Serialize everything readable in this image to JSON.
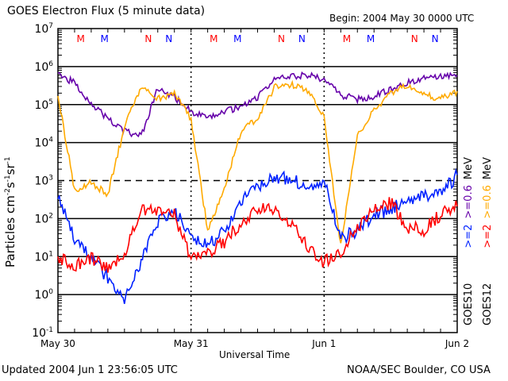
{
  "chart_data": {
    "type": "line",
    "title": "GOES Electron Flux (5 minute data)",
    "subtitle": "Begin: 2004 May 30 0000 UTC",
    "xlabel": "Universal Time",
    "ylabel": "Particles cm-2s-1sr-1",
    "y_scale": "log",
    "ylim": [
      0.1,
      10000000
    ],
    "xlim_hours": [
      0,
      72
    ],
    "y_ticks": [
      {
        "base": "10",
        "exp": "7"
      },
      {
        "base": "10",
        "exp": "6"
      },
      {
        "base": "10",
        "exp": "5"
      },
      {
        "base": "10",
        "exp": "4"
      },
      {
        "base": "10",
        "exp": "3"
      },
      {
        "base": "10",
        "exp": "2"
      },
      {
        "base": "10",
        "exp": "1"
      },
      {
        "base": "10",
        "exp": "0"
      },
      {
        "base": "10",
        "exp": "-1"
      }
    ],
    "x_ticks": [
      {
        "label": "May 30",
        "hour": 0
      },
      {
        "label": "May 31",
        "hour": 24
      },
      {
        "label": "Jun 1",
        "hour": 48
      },
      {
        "label": "Jun 2",
        "hour": 72
      }
    ],
    "threshold_line": 1000,
    "markers": [
      {
        "text": "M",
        "hour": 4.1,
        "color": "#ff0000"
      },
      {
        "text": "M",
        "hour": 8.4,
        "color": "#0000ff"
      },
      {
        "text": "N",
        "hour": 16.3,
        "color": "#ff0000"
      },
      {
        "text": "N",
        "hour": 20.0,
        "color": "#0000ff"
      },
      {
        "text": "M",
        "hour": 28.1,
        "color": "#ff0000"
      },
      {
        "text": "M",
        "hour": 32.4,
        "color": "#0000ff"
      },
      {
        "text": "N",
        "hour": 40.3,
        "color": "#ff0000"
      },
      {
        "text": "N",
        "hour": 44.0,
        "color": "#0000ff"
      },
      {
        "text": "M",
        "hour": 52.1,
        "color": "#ff0000"
      },
      {
        "text": "M",
        "hour": 56.4,
        "color": "#0000ff"
      },
      {
        "text": "N",
        "hour": 64.3,
        "color": "#ff0000"
      },
      {
        "text": "N",
        "hour": 68.0,
        "color": "#0000ff"
      }
    ],
    "hours": [
      0,
      3,
      6,
      9,
      12,
      15,
      18,
      21,
      24,
      27,
      30,
      33,
      36,
      39,
      42,
      45,
      48,
      51,
      54,
      57,
      60,
      63,
      66,
      69,
      72
    ],
    "series": [
      {
        "name": "GOES10 >=0.6 MeV",
        "color": "#6600aa",
        "log10_values": [
          5.83,
          5.56,
          5.04,
          4.62,
          4.3,
          4.16,
          5.41,
          5.2,
          4.83,
          4.62,
          4.83,
          4.93,
          5.2,
          5.66,
          5.73,
          5.79,
          5.66,
          5.25,
          5.14,
          5.2,
          5.41,
          5.56,
          5.73,
          5.77,
          5.77
        ]
      },
      {
        "name": "GOES12 >=0.6 MeV",
        "color": "#ffaa00",
        "log10_values": [
          5.25,
          2.74,
          2.95,
          2.64,
          4.41,
          5.45,
          5.14,
          5.29,
          4.62,
          1.69,
          2.74,
          4.31,
          4.62,
          5.45,
          5.52,
          5.35,
          4.72,
          1.27,
          4.2,
          4.83,
          5.29,
          5.5,
          5.25,
          5.14,
          5.35
        ]
      },
      {
        "name": "GOES10 >=2 MeV",
        "color": "#0022ff",
        "log10_values": [
          2.53,
          1.48,
          0.96,
          0.44,
          -0.19,
          0.85,
          1.9,
          2.22,
          1.48,
          1.27,
          1.69,
          2.42,
          2.84,
          3.11,
          3.03,
          2.84,
          2.95,
          1.48,
          1.69,
          2.11,
          2.22,
          2.53,
          2.61,
          2.63,
          3.15
        ]
      },
      {
        "name": "GOES12 >=2 MeV",
        "color": "#ff0000",
        "log10_values": [
          0.96,
          0.75,
          0.96,
          0.65,
          1.06,
          2.22,
          2.22,
          2.11,
          0.96,
          1.06,
          1.38,
          1.9,
          2.28,
          2.22,
          1.9,
          1.27,
          0.85,
          1.06,
          1.79,
          2.22,
          2.42,
          1.79,
          1.69,
          2.11,
          2.32
        ]
      }
    ],
    "legend": [
      {
        "parts": [
          {
            "text": "GOES10",
            "color": "#000000"
          },
          {
            "text": ">=2",
            "color": "#0022ff"
          },
          {
            "text": ">=0.6",
            "color": "#6600aa"
          },
          {
            "text": "MeV",
            "color": "#000000"
          }
        ]
      },
      {
        "parts": [
          {
            "text": "GOES12",
            "color": "#000000"
          },
          {
            "text": ">=2",
            "color": "#ff0000"
          },
          {
            "text": ">=0.6",
            "color": "#ffaa00"
          },
          {
            "text": "MeV",
            "color": "#000000"
          }
        ]
      }
    ],
    "legend_placement": "right-vertical",
    "grid": "decade lines"
  },
  "footer": {
    "updated": "Updated 2004 Jun  1 23:56:05 UTC",
    "source": "NOAA/SEC Boulder, CO USA"
  }
}
